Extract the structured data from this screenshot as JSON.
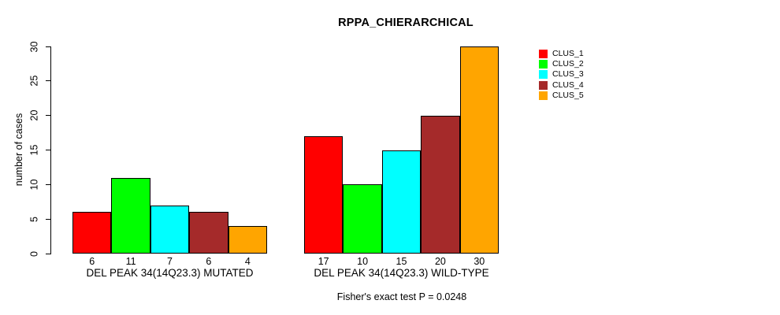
{
  "page": {
    "background": "#FFFFFF"
  },
  "chart_data": {
    "type": "bar",
    "title": "RPPA_CHIERARCHICAL",
    "xlabel": "",
    "ylabel": "number of cases",
    "ylim": [
      0,
      30
    ],
    "yticks": [
      0,
      5,
      10,
      15,
      20,
      25,
      30
    ],
    "grid": false,
    "legend_position": "right",
    "categories": [
      "DEL PEAK 34(14Q23.3) MUTATED",
      "DEL PEAK 34(14Q23.3) WILD-TYPE"
    ],
    "series": [
      {
        "name": "CLUS_1",
        "color": "#FF0000",
        "values": [
          6,
          17
        ]
      },
      {
        "name": "CLUS_2",
        "color": "#00FF00",
        "values": [
          11,
          10
        ]
      },
      {
        "name": "CLUS_3",
        "color": "#00FFFF",
        "values": [
          7,
          15
        ]
      },
      {
        "name": "CLUS_4",
        "color": "#A52A2A",
        "values": [
          6,
          20
        ]
      },
      {
        "name": "CLUS_5",
        "color": "#FFA500",
        "values": [
          4,
          30
        ]
      }
    ],
    "annotation": "Fisher's exact test P = 0.0248",
    "bar_border_color": "#000000",
    "axis_color": "#000000"
  }
}
